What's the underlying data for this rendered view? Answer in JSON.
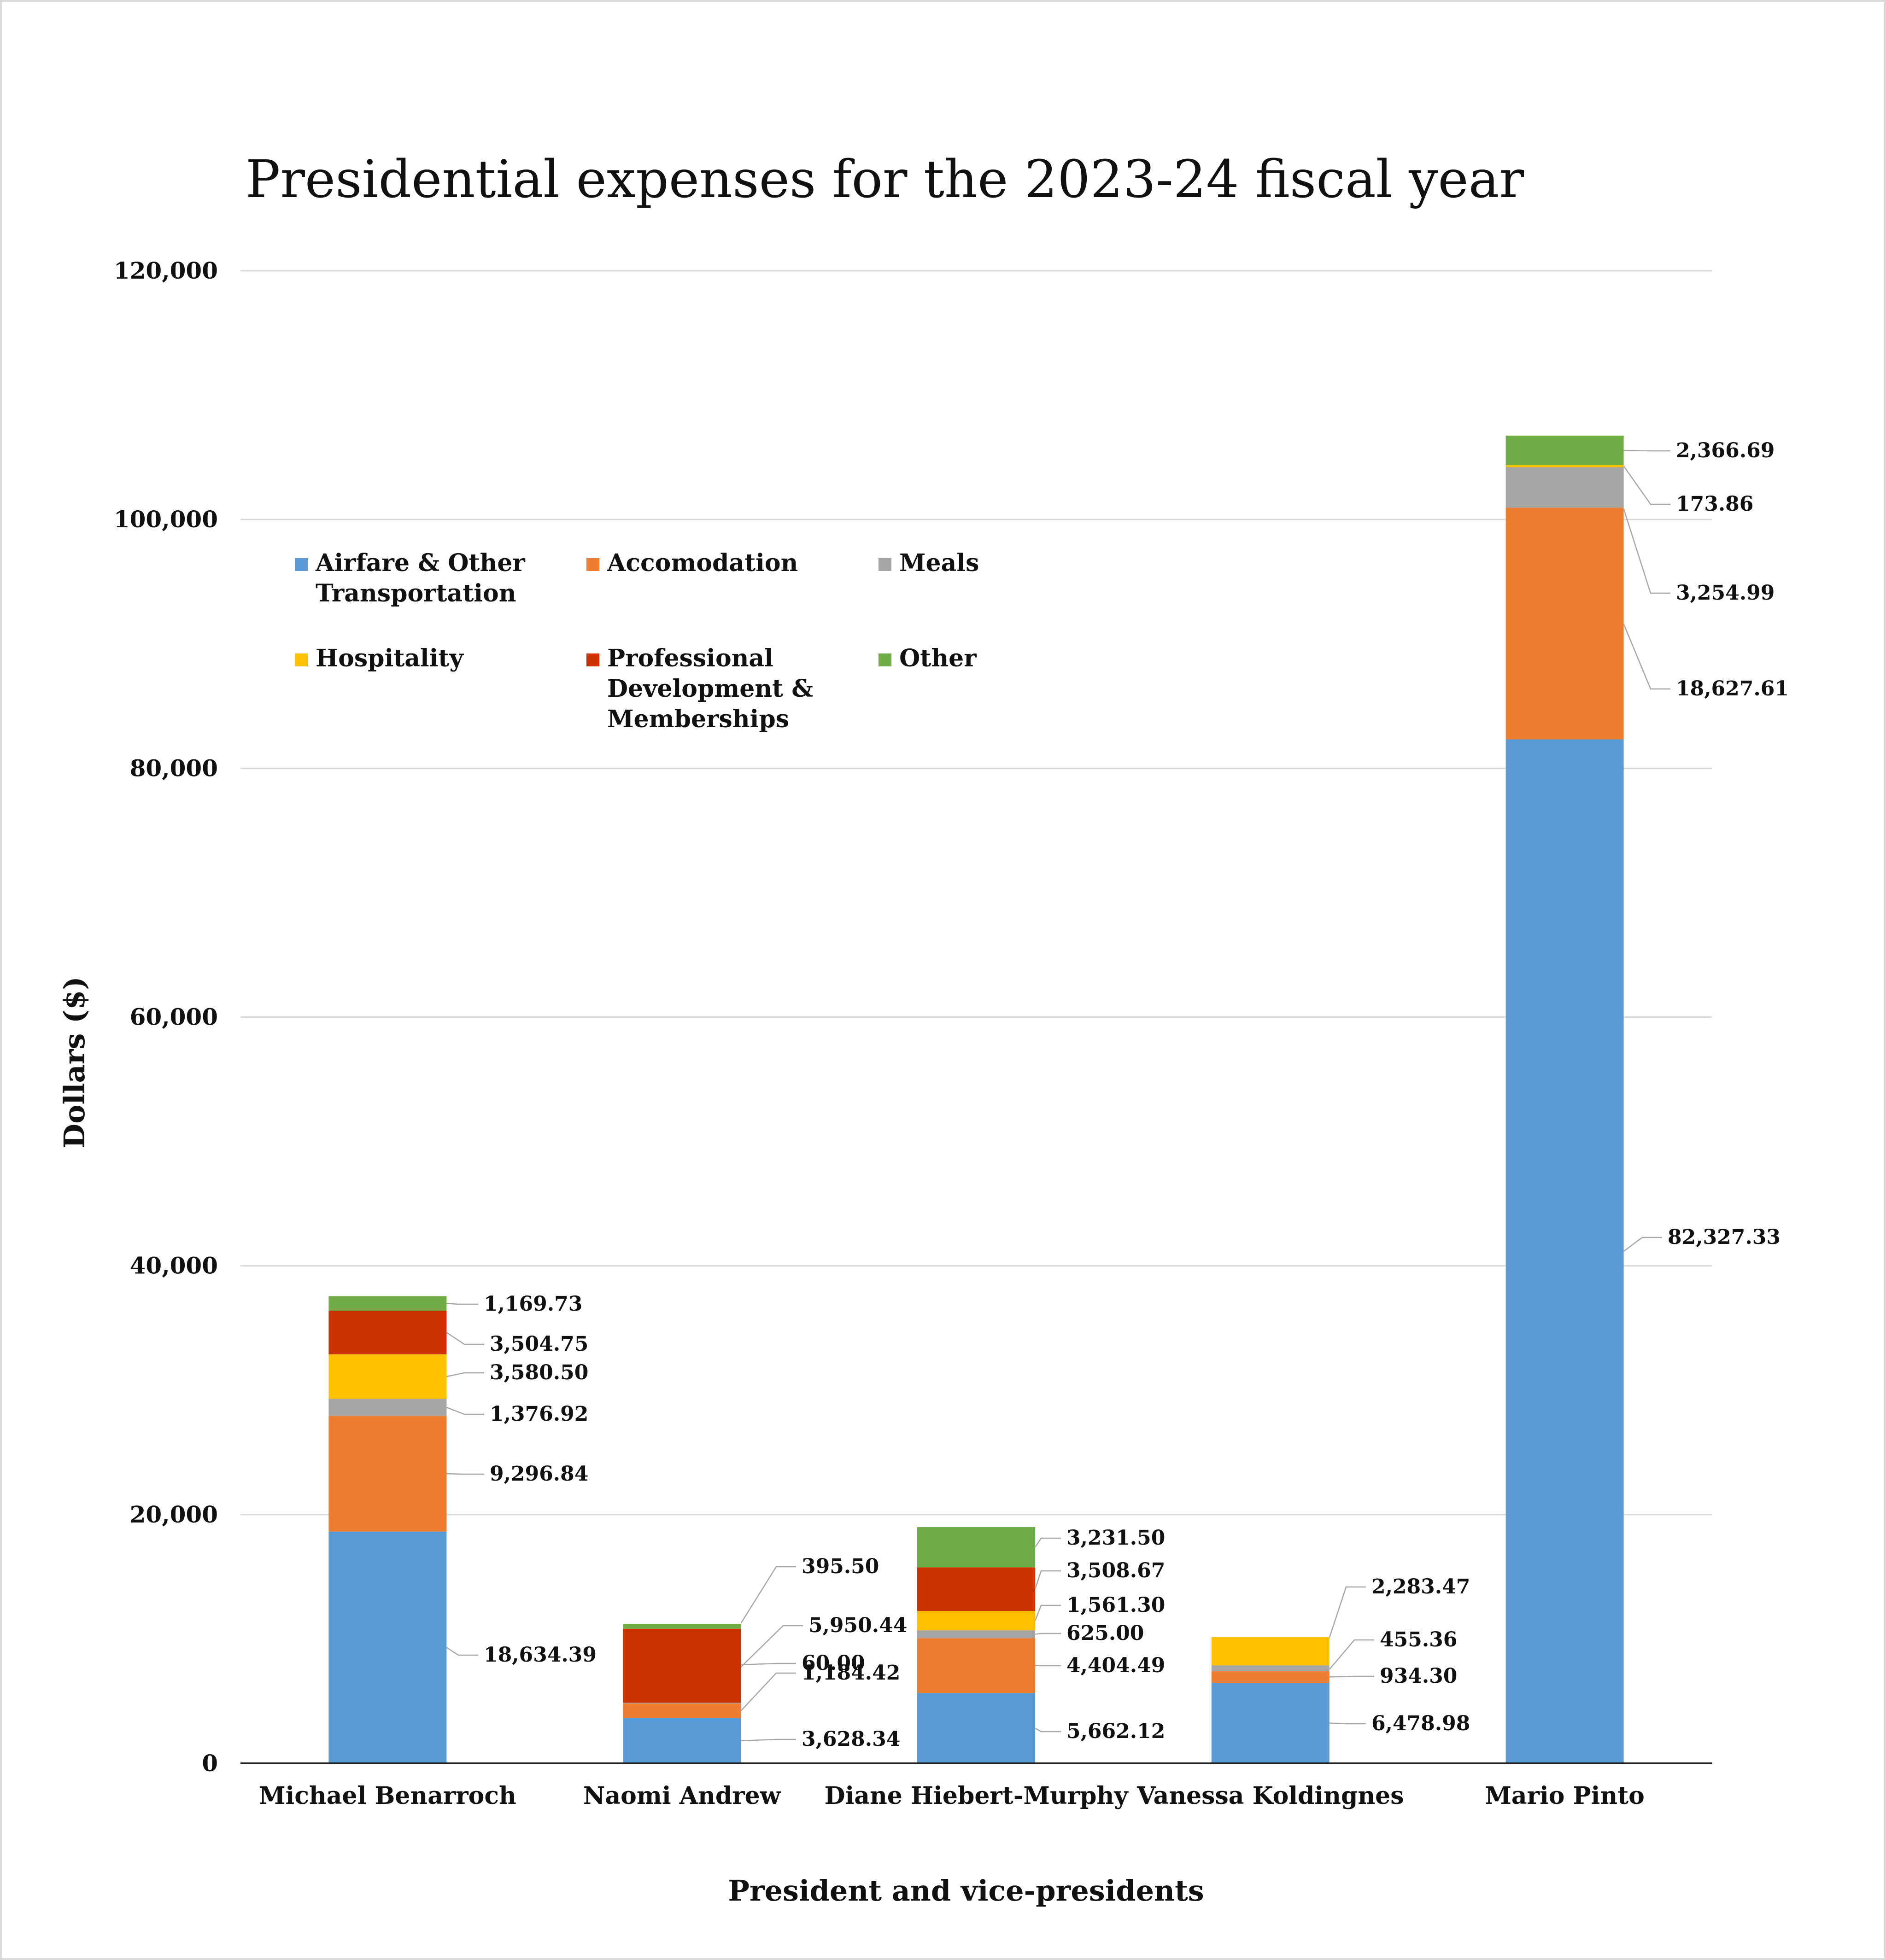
{
  "chart_data": {
    "type": "bar",
    "stacked": true,
    "title": "Presidential expenses for the 2023-24 fiscal year",
    "xlabel": "President and vice-presidents",
    "ylabel": "Dollars ($)",
    "ylim": [
      0,
      120000
    ],
    "yticks": [
      0,
      20000,
      40000,
      60000,
      80000,
      100000,
      120000
    ],
    "ytick_labels": [
      "0",
      "20,000",
      "40,000",
      "60,000",
      "80,000",
      "100,000",
      "120,000"
    ],
    "grid": true,
    "legend_position": "top-left inside plot",
    "categories": [
      "Michael Benarroch",
      "Naomi Andrew",
      "Diane Hiebert-Murphy",
      "Vanessa Koldingnes",
      "Mario Pinto"
    ],
    "series": [
      {
        "name": "Airfare & Other Transportation",
        "legend_lines": [
          "Airfare & Other",
          "Transportation"
        ],
        "color": "#5B9BD5",
        "values": [
          18634.39,
          3628.34,
          5662.12,
          6478.98,
          82327.33
        ],
        "labels": [
          "18,634.39",
          "3,628.34",
          "5,662.12",
          "6,478.98",
          "82,327.33"
        ]
      },
      {
        "name": "Accomodation",
        "legend_lines": [
          "Accomodation"
        ],
        "color": "#ED7D31",
        "values": [
          9296.84,
          1184.42,
          4404.49,
          934.3,
          18627.61
        ],
        "labels": [
          "9,296.84",
          "1,184.42",
          "4,404.49",
          "934.30",
          "18,627.61"
        ]
      },
      {
        "name": "Meals",
        "legend_lines": [
          "Meals"
        ],
        "color": "#A5A5A5",
        "values": [
          1376.92,
          60.0,
          625.0,
          455.36,
          3254.99
        ],
        "labels": [
          "1,376.92",
          "60.00",
          "625.00",
          "455.36",
          "3,254.99"
        ]
      },
      {
        "name": "Hospitality",
        "legend_lines": [
          "Hospitality"
        ],
        "color": "#FFC000",
        "values": [
          3580.5,
          0,
          1561.3,
          2283.47,
          173.86
        ],
        "labels": [
          "3,580.50",
          "",
          "1,561.30",
          "2,283.47",
          "173.86"
        ]
      },
      {
        "name": "Professional Development & Memberships",
        "legend_lines": [
          "Professional",
          "Development &",
          "Memberships"
        ],
        "color": "#CC3300",
        "values": [
          3504.75,
          5950.44,
          3508.67,
          0,
          0
        ],
        "labels": [
          "3,504.75",
          "5,950.44",
          "3,508.67",
          "",
          ""
        ]
      },
      {
        "name": "Other",
        "legend_lines": [
          "Other"
        ],
        "color": "#70AD47",
        "values": [
          1169.73,
          395.5,
          3231.5,
          0,
          2366.69
        ],
        "labels": [
          "1,169.73",
          "395.50",
          "3,231.50",
          "",
          "2,366.69"
        ]
      }
    ]
  }
}
